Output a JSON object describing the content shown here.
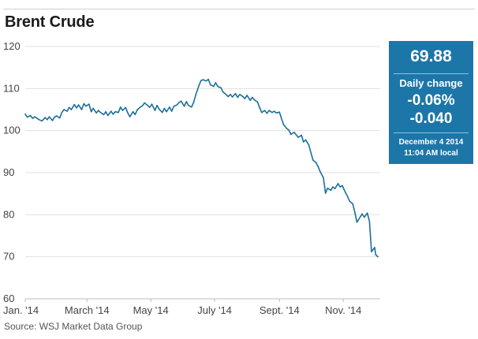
{
  "title": "Brent Crude",
  "source": "Source: WSJ Market Data Group",
  "colors": {
    "line": "#1c6f9c",
    "quote_box": "#1d76a8",
    "grid": "#e1e1e1"
  },
  "quote": {
    "price": "69.88",
    "change_label": "Daily change",
    "change_pct": "-0.06%",
    "change_abs": "-0.040",
    "date": "December 4 2014",
    "time": "11:04 AM local"
  },
  "chart_data": {
    "type": "line",
    "title": "Brent Crude",
    "xlabel": "",
    "ylabel": "",
    "ylim": [
      60,
      120
    ],
    "yticks": [
      60,
      70,
      80,
      90,
      100,
      110,
      120
    ],
    "xticks": [
      "Jan. '14",
      "March '14",
      "May '14",
      "July '14",
      "Sept. '14",
      "Nov. '14"
    ],
    "xtick_dates": [
      "2014-01-01",
      "2014-03-01",
      "2014-05-01",
      "2014-07-01",
      "2014-09-01",
      "2014-11-01"
    ],
    "xlim": [
      "2014-01-01",
      "2014-12-04"
    ],
    "grid": "horizontal",
    "series": [
      {
        "values": [
          [
            "2014-01-01",
            103.9
          ],
          [
            "2014-01-03",
            103.2
          ],
          [
            "2014-01-06",
            103.6
          ],
          [
            "2014-01-08",
            102.9
          ],
          [
            "2014-01-10",
            103.3
          ],
          [
            "2014-01-13",
            102.8
          ],
          [
            "2014-01-15",
            102.5
          ],
          [
            "2014-01-17",
            102.3
          ],
          [
            "2014-01-20",
            103.1
          ],
          [
            "2014-01-22",
            102.6
          ],
          [
            "2014-01-24",
            103.3
          ],
          [
            "2014-01-27",
            102.4
          ],
          [
            "2014-01-29",
            103.2
          ],
          [
            "2014-01-31",
            103.5
          ],
          [
            "2014-02-03",
            103.0
          ],
          [
            "2014-02-05",
            104.3
          ],
          [
            "2014-02-07",
            105.0
          ],
          [
            "2014-02-10",
            104.6
          ],
          [
            "2014-02-12",
            105.5
          ],
          [
            "2014-02-14",
            105.0
          ],
          [
            "2014-02-17",
            106.2
          ],
          [
            "2014-02-19",
            105.4
          ],
          [
            "2014-02-21",
            106.1
          ],
          [
            "2014-02-24",
            105.0
          ],
          [
            "2014-02-26",
            106.4
          ],
          [
            "2014-02-28",
            105.8
          ],
          [
            "2014-03-03",
            106.3
          ],
          [
            "2014-03-05",
            104.5
          ],
          [
            "2014-03-07",
            105.3
          ],
          [
            "2014-03-10",
            104.2
          ],
          [
            "2014-03-12",
            104.8
          ],
          [
            "2014-03-14",
            104.3
          ],
          [
            "2014-03-17",
            103.8
          ],
          [
            "2014-03-19",
            104.5
          ],
          [
            "2014-03-21",
            103.6
          ],
          [
            "2014-03-24",
            104.6
          ],
          [
            "2014-03-26",
            103.9
          ],
          [
            "2014-03-28",
            104.5
          ],
          [
            "2014-03-31",
            104.3
          ],
          [
            "2014-04-02",
            105.6
          ],
          [
            "2014-04-04",
            104.8
          ],
          [
            "2014-04-07",
            105.5
          ],
          [
            "2014-04-09",
            104.2
          ],
          [
            "2014-04-11",
            103.3
          ],
          [
            "2014-04-14",
            104.5
          ],
          [
            "2014-04-16",
            103.8
          ],
          [
            "2014-04-18",
            104.9
          ],
          [
            "2014-04-21",
            105.6
          ],
          [
            "2014-04-23",
            105.9
          ],
          [
            "2014-04-25",
            106.6
          ],
          [
            "2014-04-28",
            106.0
          ],
          [
            "2014-04-30",
            105.5
          ],
          [
            "2014-05-02",
            106.3
          ],
          [
            "2014-05-05",
            104.8
          ],
          [
            "2014-05-07",
            106.0
          ],
          [
            "2014-05-09",
            105.1
          ],
          [
            "2014-05-12",
            104.3
          ],
          [
            "2014-05-14",
            105.3
          ],
          [
            "2014-05-16",
            104.5
          ],
          [
            "2014-05-19",
            105.6
          ],
          [
            "2014-05-21",
            104.6
          ],
          [
            "2014-05-23",
            105.8
          ],
          [
            "2014-05-26",
            106.1
          ],
          [
            "2014-05-28",
            106.7
          ],
          [
            "2014-05-30",
            107.0
          ],
          [
            "2014-06-02",
            105.8
          ],
          [
            "2014-06-04",
            106.9
          ],
          [
            "2014-06-06",
            106.0
          ],
          [
            "2014-06-09",
            105.6
          ],
          [
            "2014-06-11",
            106.8
          ],
          [
            "2014-06-13",
            108.5
          ],
          [
            "2014-06-16",
            110.7
          ],
          [
            "2014-06-18",
            111.9
          ],
          [
            "2014-06-20",
            112.1
          ],
          [
            "2014-06-23",
            111.8
          ],
          [
            "2014-06-25",
            112.2
          ],
          [
            "2014-06-27",
            110.9
          ],
          [
            "2014-06-30",
            110.5
          ],
          [
            "2014-07-02",
            111.4
          ],
          [
            "2014-07-04",
            110.5
          ],
          [
            "2014-07-07",
            110.2
          ],
          [
            "2014-07-09",
            109.2
          ],
          [
            "2014-07-11",
            108.8
          ],
          [
            "2014-07-14",
            108.1
          ],
          [
            "2014-07-16",
            108.6
          ],
          [
            "2014-07-18",
            108.0
          ],
          [
            "2014-07-21",
            108.8
          ],
          [
            "2014-07-23",
            107.9
          ],
          [
            "2014-07-25",
            108.6
          ],
          [
            "2014-07-28",
            108.1
          ],
          [
            "2014-07-30",
            107.6
          ],
          [
            "2014-08-01",
            108.4
          ],
          [
            "2014-08-04",
            107.2
          ],
          [
            "2014-08-06",
            107.9
          ],
          [
            "2014-08-08",
            107.3
          ],
          [
            "2014-08-11",
            106.8
          ],
          [
            "2014-08-13",
            105.5
          ],
          [
            "2014-08-15",
            104.3
          ],
          [
            "2014-08-18",
            104.8
          ],
          [
            "2014-08-20",
            104.1
          ],
          [
            "2014-08-22",
            104.8
          ],
          [
            "2014-08-25",
            104.3
          ],
          [
            "2014-08-27",
            104.6
          ],
          [
            "2014-08-29",
            104.2
          ],
          [
            "2014-09-01",
            104.4
          ],
          [
            "2014-09-03",
            102.8
          ],
          [
            "2014-09-05",
            101.4
          ],
          [
            "2014-09-08",
            100.5
          ],
          [
            "2014-09-10",
            100.1
          ],
          [
            "2014-09-12",
            99.1
          ],
          [
            "2014-09-15",
            99.6
          ],
          [
            "2014-09-17",
            99.0
          ],
          [
            "2014-09-19",
            98.4
          ],
          [
            "2014-09-22",
            98.9
          ],
          [
            "2014-09-24",
            97.3
          ],
          [
            "2014-09-26",
            97.8
          ],
          [
            "2014-09-29",
            96.6
          ],
          [
            "2014-10-01",
            94.8
          ],
          [
            "2014-10-03",
            93.0
          ],
          [
            "2014-10-06",
            92.4
          ],
          [
            "2014-10-08",
            91.4
          ],
          [
            "2014-10-10",
            90.2
          ],
          [
            "2014-10-13",
            88.8
          ],
          [
            "2014-10-15",
            85.1
          ],
          [
            "2014-10-17",
            86.3
          ],
          [
            "2014-10-20",
            85.8
          ],
          [
            "2014-10-22",
            86.6
          ],
          [
            "2014-10-24",
            86.2
          ],
          [
            "2014-10-27",
            87.4
          ],
          [
            "2014-10-29",
            86.6
          ],
          [
            "2014-10-31",
            86.9
          ],
          [
            "2014-11-03",
            85.3
          ],
          [
            "2014-11-05",
            84.4
          ],
          [
            "2014-11-07",
            83.2
          ],
          [
            "2014-11-10",
            82.6
          ],
          [
            "2014-11-12",
            80.6
          ],
          [
            "2014-11-14",
            78.2
          ],
          [
            "2014-11-17",
            79.4
          ],
          [
            "2014-11-19",
            80.2
          ],
          [
            "2014-11-21",
            79.4
          ],
          [
            "2014-11-24",
            80.4
          ],
          [
            "2014-11-26",
            78.4
          ],
          [
            "2014-11-28",
            71.2
          ],
          [
            "2014-12-01",
            72.2
          ],
          [
            "2014-12-02",
            70.5
          ],
          [
            "2014-12-04",
            70.0
          ]
        ]
      }
    ]
  }
}
